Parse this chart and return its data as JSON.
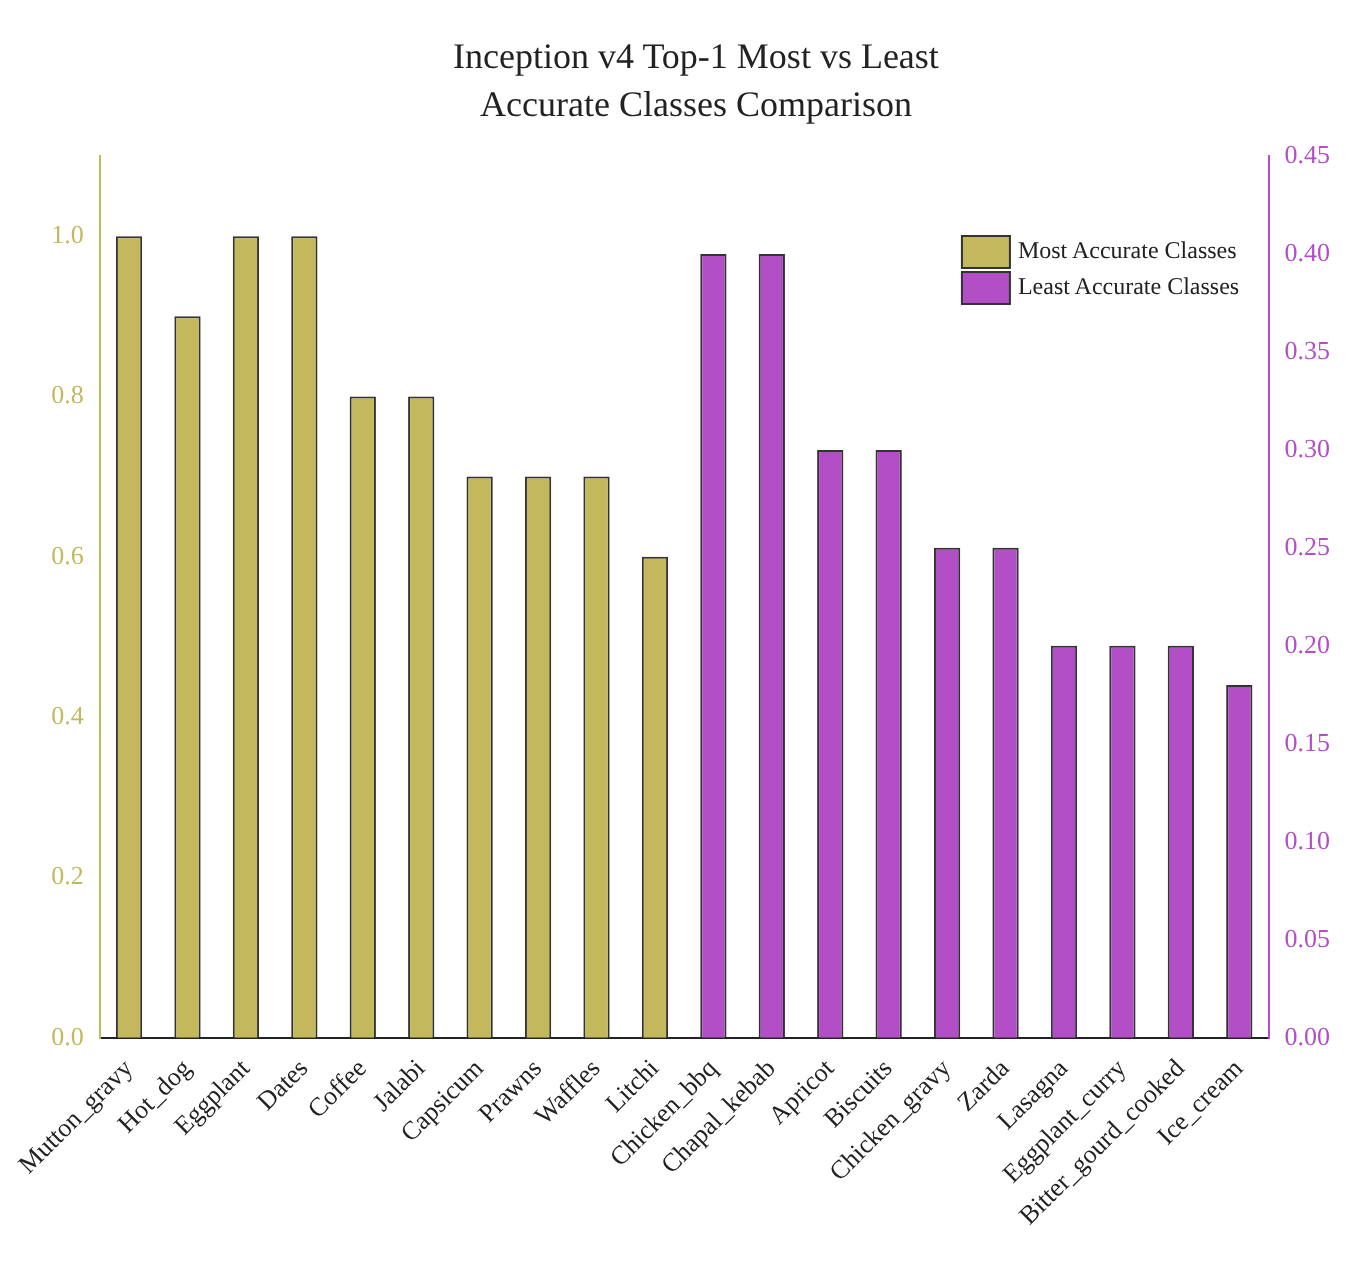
{
  "chart_data": {
    "type": "bar",
    "title": "Inception v4 Top-1 Most vs Least Accurate Classes Comparison",
    "categories": [
      "Mutton_gravy",
      "Hot_dog",
      "Eggplant",
      "Dates",
      "Coffee",
      "Jalabi",
      "Capsicum",
      "Prawns",
      "Waffles",
      "Litchi",
      "Chicken_bbq",
      "Chapal_kebab",
      "Apricot",
      "Biscuits",
      "Chicken_gravy",
      "Zarda",
      "Lasagna",
      "Eggplant_curry",
      "Bitter_gourd_cooked",
      "Ice_cream"
    ],
    "series": [
      {
        "name": "Most Accurate Classes",
        "color": "#c4b85c",
        "values": [
          1.0,
          0.9,
          1.0,
          1.0,
          0.8,
          0.8,
          0.7,
          0.7,
          0.7,
          0.6,
          null,
          null,
          null,
          null,
          null,
          null,
          null,
          null,
          null,
          null
        ]
      },
      {
        "name": "Least Accurate Classes",
        "color": "#b24fc6",
        "axis": "y2",
        "values": [
          null,
          null,
          null,
          null,
          null,
          null,
          null,
          null,
          null,
          null,
          0.4,
          0.4,
          0.3,
          0.3,
          0.25,
          0.25,
          0.2,
          0.2,
          0.2,
          0.18
        ]
      }
    ],
    "ylim": [
      0,
      1.1
    ],
    "yticks": [
      {
        "value": 0,
        "label": "0.0"
      },
      0.2,
      0.4,
      0.6,
      0.8,
      {
        "value": 1,
        "label": "1.0"
      }
    ],
    "y2lim": [
      0,
      0.45
    ],
    "y2ticks": [
      {
        "value": 0,
        "label": "0.00"
      },
      {
        "value": 0.05,
        "label": "0.05"
      },
      {
        "value": 0.1,
        "label": "0.10"
      },
      {
        "value": 0.15,
        "label": "0.15"
      },
      {
        "value": 0.2,
        "label": "0.20"
      },
      {
        "value": 0.25,
        "label": "0.25"
      },
      {
        "value": 0.3,
        "label": "0.30"
      },
      {
        "value": 0.35,
        "label": "0.35"
      },
      {
        "value": 0.4,
        "label": "0.40"
      },
      {
        "value": 0.45,
        "label": "0.45"
      }
    ],
    "grid": false,
    "legend": "top right"
  }
}
